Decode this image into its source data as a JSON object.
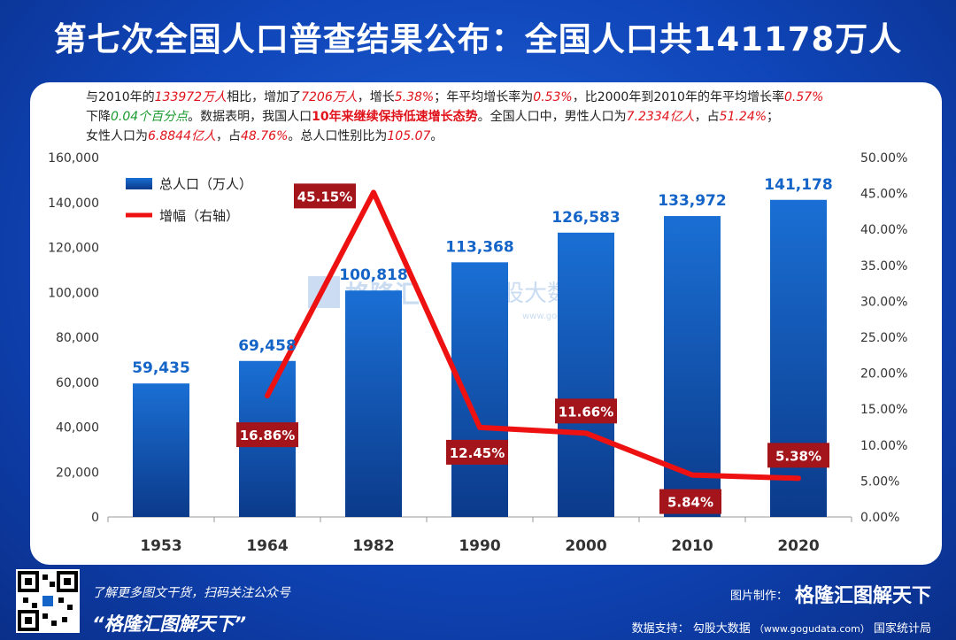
{
  "title": "第七次全国人口普查结果公布：全国人口共141178万人",
  "intro": {
    "s1": "与2010年的",
    "v1": "133972万人",
    "s2": "相比，增加了",
    "v2": "7206万人",
    "s3": "，增长",
    "v3": "5.38%",
    "s4": "；年平均增长率为",
    "v4": "0.53%",
    "s5": "，比2000年到2010年的年平均增长率",
    "v5": "0.57%",
    "s6": "下降",
    "v6": "0.04个百分点",
    "s7": "。数据表明，我国人口",
    "v7": "10年来继续保持低速增长态势",
    "s8": "。全国人口中，男性人口为",
    "v8": "7.2334亿人",
    "s9": "，占",
    "v9": "51.24%",
    "s10": "；",
    "s11": "女性人口为",
    "v10": "6.8844亿人",
    "s12": "，占",
    "v11": "48.76%",
    "s13": "。总人口性别比为",
    "v12": "105.07",
    "s14": "。"
  },
  "chart_data": {
    "type": "bar",
    "categories": [
      "1953",
      "1964",
      "1982",
      "1990",
      "2000",
      "2010",
      "2020"
    ],
    "series": [
      {
        "name": "总人口（万人）",
        "type": "bar",
        "axis": "left",
        "values": [
          59435,
          69458,
          100818,
          113368,
          126583,
          133972,
          141178
        ],
        "labels": [
          "59,435",
          "69,458",
          "100,818",
          "113,368",
          "126,583",
          "133,972",
          "141,178"
        ]
      },
      {
        "name": "增幅（右轴）",
        "type": "line",
        "axis": "right",
        "values": [
          null,
          16.86,
          45.15,
          12.45,
          11.66,
          5.84,
          5.38
        ],
        "labels": [
          "",
          "16.86%",
          "45.15%",
          "12.45%",
          "11.66%",
          "5.84%",
          "5.38%"
        ]
      }
    ],
    "y_left": {
      "min": 0,
      "max": 160000,
      "ticks": [
        "0",
        "20,000",
        "40,000",
        "60,000",
        "80,000",
        "100,000",
        "120,000",
        "140,000",
        "160,000"
      ]
    },
    "y_right": {
      "min": 0,
      "max": 50,
      "ticks": [
        "0.00%",
        "5.00%",
        "10.00%",
        "15.00%",
        "20.00%",
        "25.00%",
        "30.00%",
        "35.00%",
        "40.00%",
        "45.00%",
        "50.00%"
      ]
    },
    "legend_position": "top-left",
    "grid": false,
    "colors": {
      "bar": "#1565c8",
      "line": "#ee1111",
      "label_box": "#a3141b"
    }
  },
  "watermark": {
    "brand": "格隆汇",
    "partner": "勾股大数据",
    "url": "www.gogudata.com"
  },
  "footer": {
    "tip": "了解更多图文干货，扫码关注公众号",
    "slogan": "“格隆汇图解天下”",
    "maker_label": "图片制作：",
    "maker_brand": "格隆汇图解天下",
    "source_label": "数据支持：",
    "source_name": "勾股大数据",
    "source_url": "（www.gogudata.com）",
    "source_bureau": "国家统计局"
  }
}
